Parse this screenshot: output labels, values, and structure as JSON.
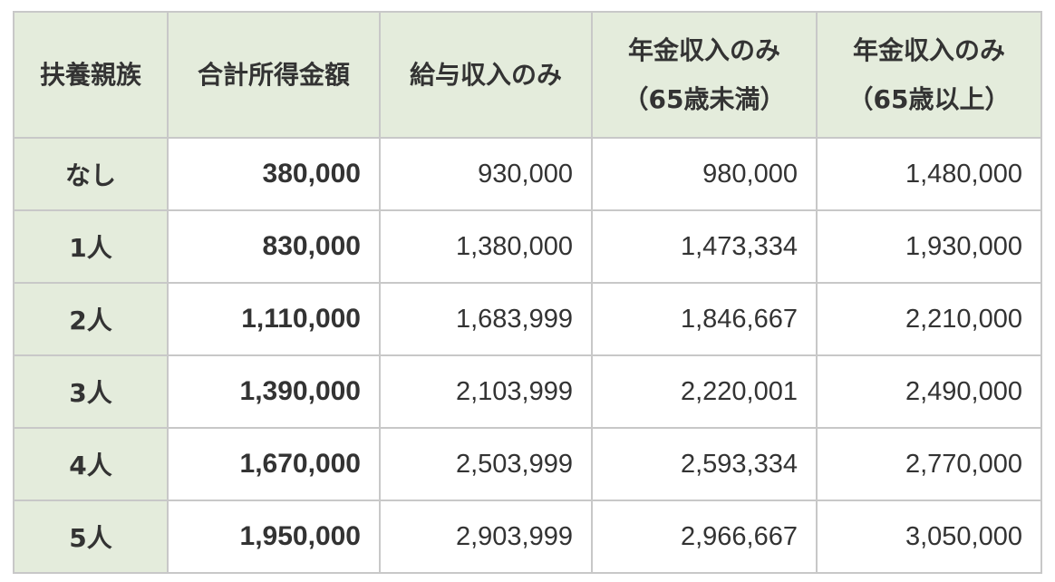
{
  "table": {
    "headers": [
      {
        "lines": [
          "扶養親族"
        ]
      },
      {
        "lines": [
          "合計所得金額"
        ]
      },
      {
        "lines": [
          "給与収入のみ"
        ]
      },
      {
        "lines": [
          "年金収入のみ",
          "（65歳未満）"
        ]
      },
      {
        "lines": [
          "年金収入のみ",
          "（65歳以上）"
        ]
      }
    ],
    "rows": [
      {
        "label": "なし",
        "values": [
          "380,000",
          "930,000",
          "980,000",
          "1,480,000"
        ]
      },
      {
        "label": "1人",
        "values": [
          "830,000",
          "1,380,000",
          "1,473,334",
          "1,930,000"
        ]
      },
      {
        "label": "2人",
        "values": [
          "1,110,000",
          "1,683,999",
          "1,846,667",
          "2,210,000"
        ]
      },
      {
        "label": "3人",
        "values": [
          "1,390,000",
          "2,103,999",
          "2,220,001",
          "2,490,000"
        ]
      },
      {
        "label": "4人",
        "values": [
          "1,670,000",
          "2,503,999",
          "2,593,334",
          "2,770,000"
        ]
      },
      {
        "label": "5人",
        "values": [
          "1,950,000",
          "2,903,999",
          "2,966,667",
          "3,050,000"
        ]
      }
    ]
  },
  "colors": {
    "header_bg": "#e4ecdc",
    "border": "#c8c8c8",
    "text": "#333333"
  }
}
